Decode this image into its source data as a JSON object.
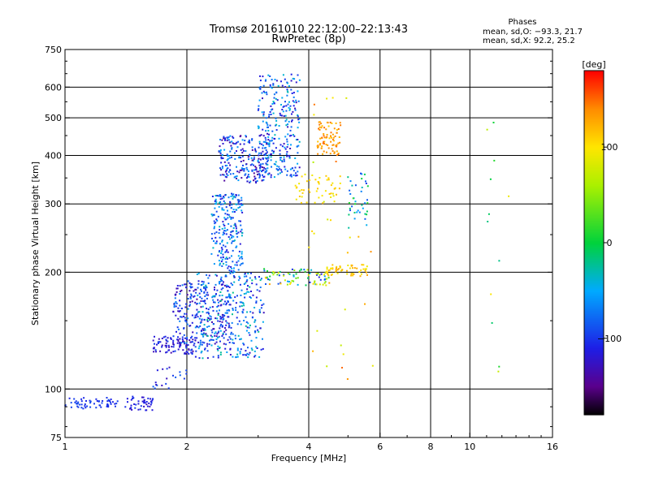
{
  "chart_data": {
    "type": "scatter",
    "title": "Tromsø 20161010 22:12:00–22:13:43",
    "subtitle": "RwPretec (8p)",
    "xlabel": "Frequency [MHz]",
    "ylabel": "Stationary phase Virtual Height [km]",
    "x_scale": "log",
    "y_scale": "log",
    "xlim": [
      1,
      16
    ],
    "ylim": [
      75,
      750
    ],
    "x_ticks": [
      1,
      2,
      4,
      6,
      8,
      10,
      16
    ],
    "x_tick_labels": [
      "1",
      "2",
      "4",
      "6",
      "8",
      "10",
      "16"
    ],
    "y_ticks": [
      75,
      100,
      200,
      300,
      400,
      500,
      600,
      750
    ],
    "y_tick_labels": [
      "75",
      "100",
      "200",
      "300",
      "400",
      "500",
      "600",
      "750"
    ],
    "x_gridlines": [
      2,
      4,
      6,
      8,
      10
    ],
    "y_gridlines": [
      100,
      200,
      300,
      400,
      500,
      600
    ],
    "grid": true,
    "stats": {
      "heading": "Phases",
      "line_o": "mean, sd,O: −93.3, 21.7",
      "line_x": "mean, sd,X:  92.2, 25.2"
    },
    "colorbar": {
      "label": "[deg]",
      "range": [
        -180,
        180
      ],
      "ticks": [
        100,
        0,
        -100
      ],
      "tick_labels": [
        "100",
        "0",
        "−100"
      ]
    },
    "clusters": [
      {
        "x": [
          1.0,
          1.35
        ],
        "y": [
          89,
          95
        ],
        "phase": [
          -110,
          -90
        ],
        "n": 60
      },
      {
        "x": [
          1.4,
          1.65
        ],
        "y": [
          88,
          96
        ],
        "phase": [
          -130,
          -95
        ],
        "n": 45
      },
      {
        "x": [
          1.65,
          2.0
        ],
        "y": [
          100,
          115
        ],
        "phase": [
          -130,
          -80
        ],
        "n": 20
      },
      {
        "x": [
          1.65,
          2.1
        ],
        "y": [
          123,
          137
        ],
        "phase": [
          -140,
          -90
        ],
        "n": 90
      },
      {
        "x": [
          1.85,
          2.6
        ],
        "y": [
          130,
          190
        ],
        "phase": [
          -140,
          -60
        ],
        "n": 260
      },
      {
        "x": [
          2.1,
          3.1
        ],
        "y": [
          120,
          200
        ],
        "phase": [
          -130,
          -20
        ],
        "n": 300
      },
      {
        "x": [
          2.3,
          2.75
        ],
        "y": [
          200,
          320
        ],
        "phase": [
          -120,
          -30
        ],
        "n": 230
      },
      {
        "x": [
          2.4,
          3.2
        ],
        "y": [
          340,
          450
        ],
        "phase": [
          -150,
          -50
        ],
        "n": 220
      },
      {
        "x": [
          3.0,
          3.8
        ],
        "y": [
          350,
          650
        ],
        "phase": [
          -130,
          -30
        ],
        "n": 280
      },
      {
        "x": [
          3.1,
          4.5
        ],
        "y": [
          185,
          205
        ],
        "phase": [
          -120,
          130
        ],
        "n": 80
      },
      {
        "x": [
          4.2,
          4.8
        ],
        "y": [
          400,
          490
        ],
        "phase": [
          110,
          150
        ],
        "n": 80
      },
      {
        "x": [
          3.7,
          4.8
        ],
        "y": [
          300,
          360
        ],
        "phase": [
          90,
          120
        ],
        "n": 50
      },
      {
        "x": [
          4.4,
          5.6
        ],
        "y": [
          195,
          210
        ],
        "phase": [
          90,
          130
        ],
        "n": 60
      },
      {
        "x": [
          5.0,
          5.6
        ],
        "y": [
          260,
          360
        ],
        "phase": [
          -100,
          20
        ],
        "n": 40
      },
      {
        "x": [
          4.0,
          5.8
        ],
        "y": [
          105,
          600
        ],
        "phase": [
          60,
          150
        ],
        "n": 30
      },
      {
        "x": [
          11,
          12.5
        ],
        "y": [
          95,
          500
        ],
        "phase": [
          -20,
          150
        ],
        "n": 12
      }
    ]
  }
}
